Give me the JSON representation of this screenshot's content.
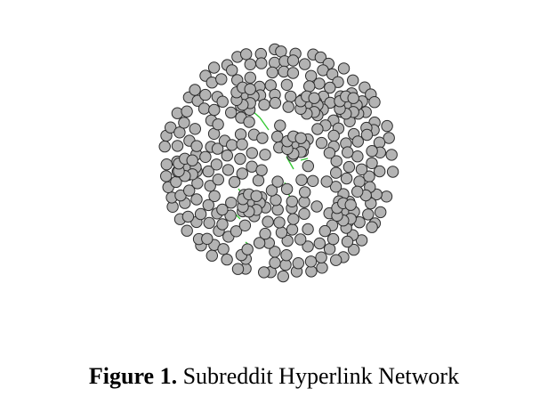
{
  "figure": {
    "caption_label": "Figure 1.",
    "caption_text": " Subreddit Hyperlink Network"
  },
  "colors": {
    "node_fill": "#b3b3b3",
    "node_stroke": "#2b2b2b",
    "edge": "#36c936",
    "background": "#ffffff"
  }
}
